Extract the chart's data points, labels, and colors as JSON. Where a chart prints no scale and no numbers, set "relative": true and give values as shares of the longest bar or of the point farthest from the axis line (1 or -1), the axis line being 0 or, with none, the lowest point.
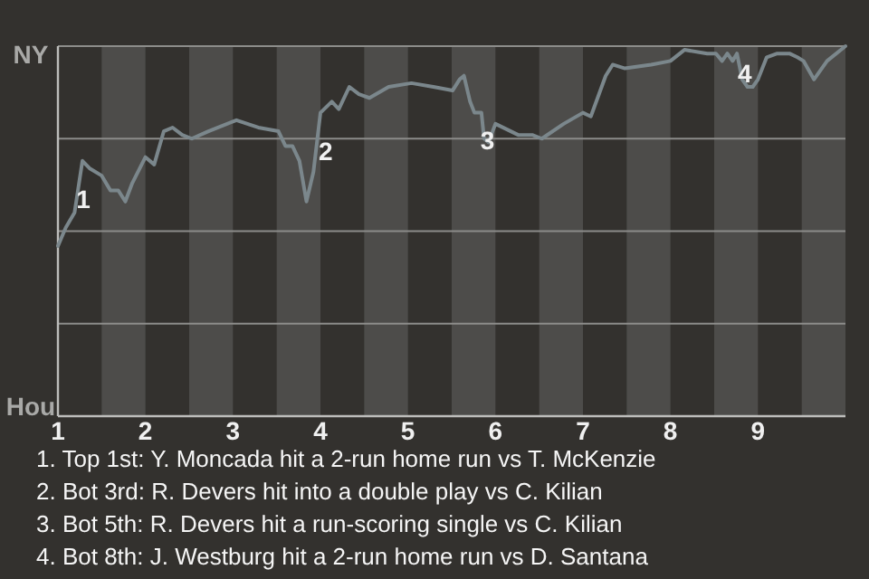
{
  "chart_data": {
    "type": "line",
    "relative": true,
    "xlim": [
      1,
      10
    ],
    "xticks": [
      1,
      2,
      3,
      4,
      5,
      6,
      7,
      8,
      9
    ],
    "marker": "none",
    "line_style": "solid",
    "series": [
      {
        "color": "#7b878c",
        "x": [
          1,
          1.09,
          1.19,
          1.28,
          1.36,
          1.5,
          1.6,
          1.69,
          1.77,
          1.85,
          2,
          2.1,
          2.21,
          2.31,
          2.42,
          2.53,
          2.72,
          3.04,
          3.29,
          3.52,
          3.6,
          3.68,
          3.76,
          3.84,
          3.92,
          4,
          4.13,
          4.21,
          4.33,
          4.44,
          4.56,
          4.78,
          5.04,
          5.29,
          5.51,
          5.59,
          5.64,
          5.71,
          5.76,
          5.84,
          5.87,
          5.92,
          6,
          6.26,
          6.42,
          6.53,
          6.78,
          7,
          7.09,
          7.26,
          7.34,
          7.48,
          7.78,
          8,
          8.16,
          8.42,
          8.52,
          8.59,
          8.65,
          8.71,
          8.76,
          8.82,
          8.88,
          8.94,
          9,
          9.1,
          9.22,
          9.36,
          9.45,
          9.52,
          9.64,
          9.79,
          10
        ],
        "values": [
          0.46,
          0.51,
          0.55,
          0.69,
          0.67,
          0.65,
          0.61,
          0.61,
          0.58,
          0.63,
          0.7,
          0.68,
          0.77,
          0.78,
          0.76,
          0.75,
          0.77,
          0.8,
          0.78,
          0.77,
          0.73,
          0.73,
          0.69,
          0.58,
          0.66,
          0.82,
          0.85,
          0.83,
          0.89,
          0.87,
          0.86,
          0.89,
          0.9,
          0.89,
          0.88,
          0.91,
          0.92,
          0.85,
          0.82,
          0.82,
          0.75,
          0.74,
          0.79,
          0.76,
          0.76,
          0.75,
          0.79,
          0.82,
          0.81,
          0.92,
          0.95,
          0.94,
          0.95,
          0.96,
          0.99,
          0.98,
          0.98,
          0.96,
          0.98,
          0.96,
          0.98,
          0.91,
          0.89,
          0.89,
          0.91,
          0.97,
          0.98,
          0.98,
          0.97,
          0.96,
          0.91,
          0.96,
          1
        ]
      }
    ],
    "ref_lines": [
      {
        "axis": "y",
        "value": 1,
        "color": "#8c8c8a"
      },
      {
        "axis": "y",
        "value": 0.75,
        "color": "#8c8c8a"
      },
      {
        "axis": "y",
        "value": 0.5,
        "color": "#8c8c8a"
      },
      {
        "axis": "y",
        "value": 0.25,
        "color": "#8c8c8a"
      }
    ],
    "bands": [
      {
        "axis": "x",
        "from": 1.5,
        "to": 2,
        "color": "#4d4c4a"
      },
      {
        "axis": "x",
        "from": 2.5,
        "to": 3,
        "color": "#4d4c4a"
      },
      {
        "axis": "x",
        "from": 3.5,
        "to": 4,
        "color": "#4d4c4a"
      },
      {
        "axis": "x",
        "from": 4.5,
        "to": 5,
        "color": "#4d4c4a"
      },
      {
        "axis": "x",
        "from": 5.5,
        "to": 6,
        "color": "#4d4c4a"
      },
      {
        "axis": "x",
        "from": 6.5,
        "to": 7,
        "color": "#4d4c4a"
      },
      {
        "axis": "x",
        "from": 7.5,
        "to": 8,
        "color": "#4d4c4a"
      },
      {
        "axis": "x",
        "from": 8.5,
        "to": 9,
        "color": "#4d4c4a"
      },
      {
        "axis": "x",
        "from": 9.5,
        "to": 10,
        "color": "#4d4c4a"
      }
    ],
    "annotations": [
      "NY",
      "Hou",
      {
        "text": "1",
        "x": 1.29,
        "y": 0.58
      },
      {
        "text": "2",
        "x": 4.06,
        "y": 0.71
      },
      {
        "text": "3",
        "x": 5.91,
        "y": 0.74
      },
      {
        "text": "4",
        "x": 8.85,
        "y": 0.92
      },
      "1. Top 1st: Y. Moncada hit a 2-run home run vs T. McKenzie",
      "2. Bot 3rd: R. Devers hit into a double play vs C. Kilian",
      "3. Bot 5th: R. Devers hit a run-scoring single vs C. Kilian",
      "4. Bot 8th: J. Westburg hit a 2-run home run vs D. Santana"
    ]
  }
}
